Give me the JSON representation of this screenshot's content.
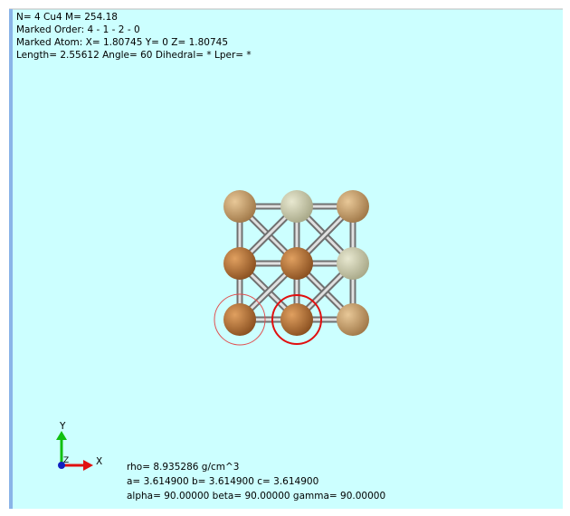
{
  "info": {
    "lines": [
      "N= 4  Cu4  M= 254.18",
      "Marked Order: 4 - 1 - 2 - 0",
      "Marked Atom: X= 1.80745 Y= 0 Z= 1.80745",
      "Length= 2.55612 Angle= 60 Dihedral= * Lper= *"
    ]
  },
  "axes": {
    "x": "X",
    "y": "Y",
    "z": "Z"
  },
  "cell": {
    "lines": [
      "rho= 8.935286 g/cm^3",
      "a= 3.614900 b= 3.614900 c= 3.614900",
      "alpha= 90.00000 beta= 90.00000 gamma= 90.00000"
    ]
  }
}
